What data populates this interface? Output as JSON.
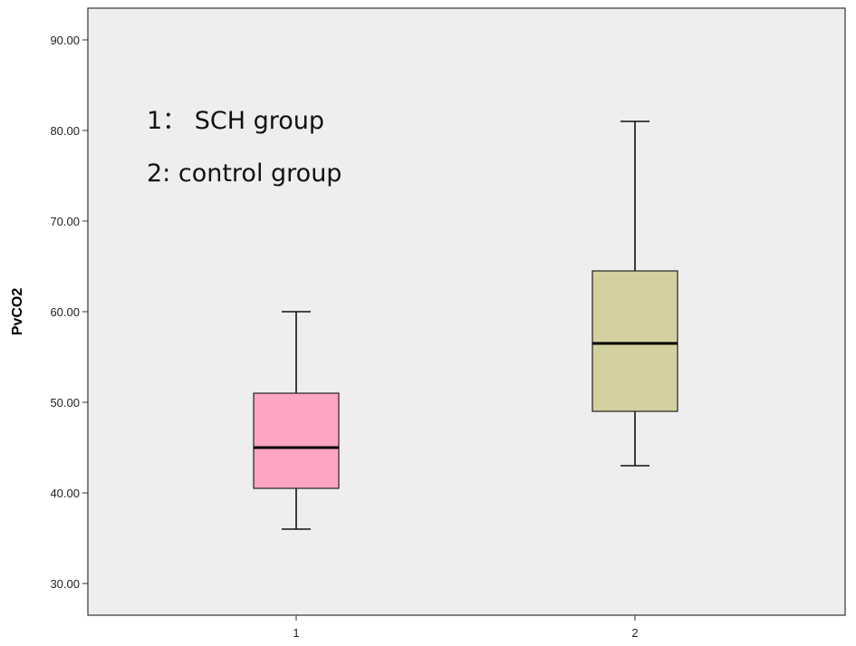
{
  "chart_data": {
    "type": "boxplot",
    "title": "",
    "xlabel": "",
    "ylabel": "PvCO2",
    "ylim": [
      28,
      95
    ],
    "yticks": [
      "30.00",
      "40.00",
      "50.00",
      "60.00",
      "70.00",
      "80.00",
      "90.00"
    ],
    "ytick_values": [
      30,
      40,
      50,
      60,
      70,
      80,
      90
    ],
    "grid": false,
    "plot_background": "#eeeeee",
    "categories": [
      "1",
      "2"
    ],
    "boxes": [
      {
        "category": "1",
        "min": 36,
        "q1": 40.5,
        "median": 45,
        "q3": 51,
        "max": 60,
        "color": "#ffa5c4"
      },
      {
        "category": "2",
        "min": 43,
        "q1": 49,
        "median": 56.5,
        "q3": 64.5,
        "max": 81,
        "color": "#d5d09f"
      }
    ],
    "annotations": [
      "1：  SCH group",
      "2:  control group"
    ]
  }
}
